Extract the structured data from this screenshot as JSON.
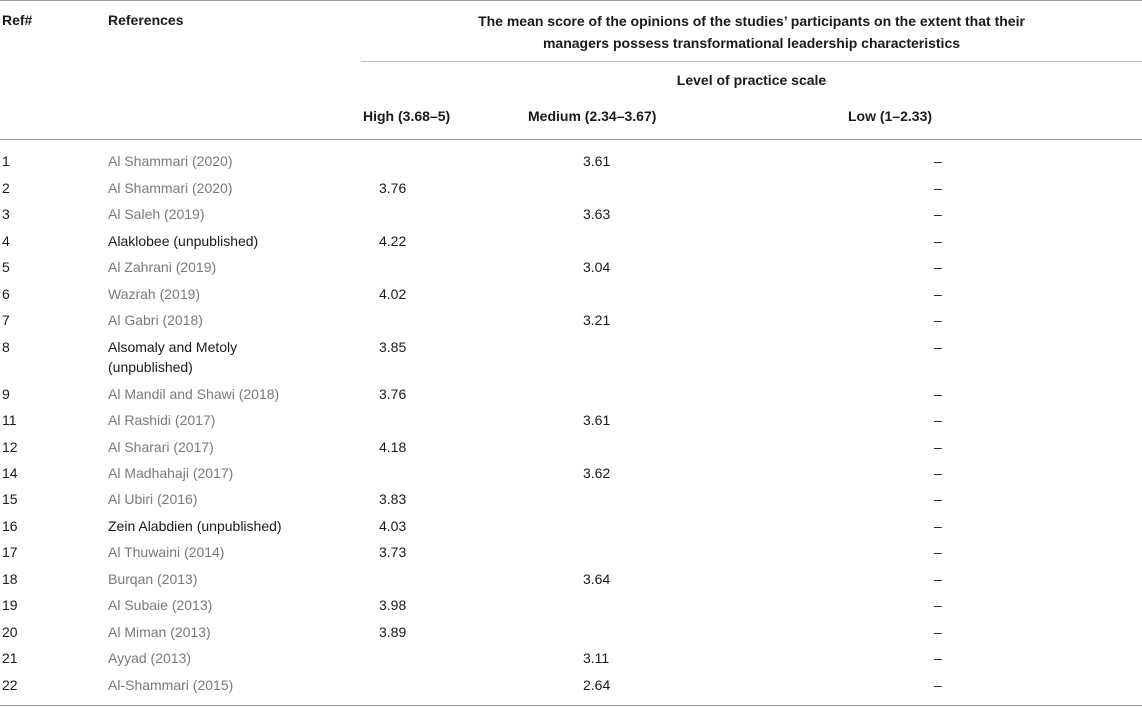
{
  "header": {
    "ref": "Ref#",
    "references": "References",
    "mean_line1": "The mean score of the opinions of the studies’ participants on the extent that their",
    "mean_line2": "managers possess transformational leadership characteristics",
    "level": "Level of practice scale",
    "high": "High (3.68–5)",
    "medium": "Medium (2.34–3.67)",
    "low": "Low (1–2.33)"
  },
  "rows": [
    {
      "ref": "1",
      "reference": "Al Shammari (2020)",
      "high": "",
      "medium": "3.61",
      "low": "–"
    },
    {
      "ref": "2",
      "reference": "Al Shammari (2020)",
      "high": "3.76",
      "medium": "",
      "low": "–"
    },
    {
      "ref": "3",
      "reference": "Al Saleh (2019)",
      "high": "",
      "medium": "3.63",
      "low": "–"
    },
    {
      "ref": "4",
      "reference": "Alaklobee (unpublished)",
      "high": "4.22",
      "medium": "",
      "low": "–"
    },
    {
      "ref": "5",
      "reference": "Al Zahrani (2019)",
      "high": "",
      "medium": "3.04",
      "low": "–"
    },
    {
      "ref": "6",
      "reference": "Wazrah (2019)",
      "high": "4.02",
      "medium": "",
      "low": "–"
    },
    {
      "ref": "7",
      "reference": "Al Gabri (2018)",
      "high": "",
      "medium": "3.21",
      "low": "–"
    },
    {
      "ref": "8",
      "reference_line1": "Alsomaly and Metoly",
      "reference_line2": "(unpublished)",
      "high": "3.85",
      "medium": "",
      "low": "–"
    },
    {
      "ref": "9",
      "reference": "Al Mandil and Shawi (2018)",
      "high": "3.76",
      "medium": "",
      "low": "–"
    },
    {
      "ref": "11",
      "reference": "Al Rashidi (2017)",
      "high": "",
      "medium": "3.61",
      "low": "–"
    },
    {
      "ref": "12",
      "reference": "Al Sharari (2017)",
      "high": "4.18",
      "medium": "",
      "low": "–"
    },
    {
      "ref": "14",
      "reference": "Al Madhahaji (2017)",
      "high": "",
      "medium": "3.62",
      "low": "–"
    },
    {
      "ref": "15",
      "reference": "Al Ubiri (2016)",
      "high": "3.83",
      "medium": "",
      "low": "–"
    },
    {
      "ref": "16",
      "reference": "Zein Alabdien (unpublished)",
      "high": "4.03",
      "medium": "",
      "low": "–"
    },
    {
      "ref": "17",
      "reference": "Al Thuwaini (2014)",
      "high": "3.73",
      "medium": "",
      "low": "–"
    },
    {
      "ref": "18",
      "reference": "Burqan (2013)",
      "high": "",
      "medium": "3.64",
      "low": "–"
    },
    {
      "ref": "19",
      "reference": "Al Subaie (2013)",
      "high": "3.98",
      "medium": "",
      "low": "–"
    },
    {
      "ref": "20",
      "reference": "Al Miman (2013)",
      "high": "3.89",
      "medium": "",
      "low": "–"
    },
    {
      "ref": "21",
      "reference": "Ayyad (2013)",
      "high": "",
      "medium": "3.11",
      "low": "–"
    },
    {
      "ref": "22",
      "reference": "Al-Shammari (2015)",
      "high": "",
      "medium": "2.64",
      "low": "–"
    }
  ]
}
